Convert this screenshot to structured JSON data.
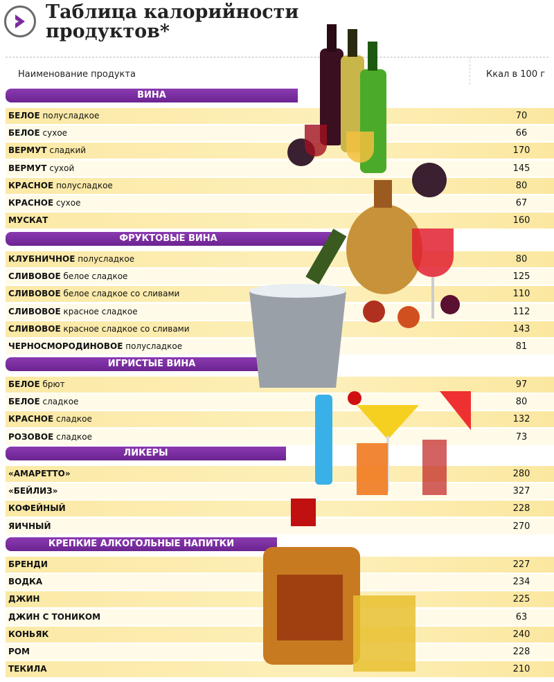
{
  "title_line1": "Таблица калорийности",
  "title_line2": "продуктов*",
  "columns": {
    "name": "Наименование продукта",
    "kcal": "Ккал в 100 г"
  },
  "sections": [
    {
      "title": "ВИНА",
      "items": [
        {
          "bold": "БЕЛОЕ",
          "rest": " полусладкое",
          "kcal": "70"
        },
        {
          "bold": "БЕЛОЕ",
          "rest": " сухое",
          "kcal": "66"
        },
        {
          "bold": "ВЕРМУТ",
          "rest": " сладкий",
          "kcal": "170"
        },
        {
          "bold": "ВЕРМУТ",
          "rest": " сухой",
          "kcal": "145"
        },
        {
          "bold": "КРАСНОЕ",
          "rest": " полусладкое",
          "kcal": "80"
        },
        {
          "bold": "КРАСНОЕ",
          "rest": " сухое",
          "kcal": "67"
        },
        {
          "bold": "МУСКАТ",
          "rest": "",
          "kcal": "160"
        }
      ]
    },
    {
      "title": "ФРУКТОВЫЕ ВИНА",
      "items": [
        {
          "bold": "КЛУБНИЧНОЕ",
          "rest": " полусладкое",
          "kcal": "80"
        },
        {
          "bold": "СЛИВОВОЕ",
          "rest": " белое сладкое",
          "kcal": "125"
        },
        {
          "bold": "СЛИВОВОЕ",
          "rest": " белое сладкое со сливами",
          "kcal": "110"
        },
        {
          "bold": "СЛИВОВОЕ",
          "rest": " красное сладкое",
          "kcal": "112"
        },
        {
          "bold": "СЛИВОВОЕ",
          "rest": " красное сладкое со сливами",
          "kcal": "143"
        },
        {
          "bold": "ЧЕРНОСМОРОДИНОВОЕ",
          "rest": " полусладкое",
          "kcal": "81"
        }
      ]
    },
    {
      "title": "ИГРИСТЫЕ ВИНА",
      "items": [
        {
          "bold": "БЕЛОЕ",
          "rest": " брют",
          "kcal": "97"
        },
        {
          "bold": "БЕЛОЕ",
          "rest": " сладкое",
          "kcal": "80"
        },
        {
          "bold": "КРАСНОЕ",
          "rest": " сладкое",
          "kcal": "132"
        },
        {
          "bold": "РОЗОВОЕ",
          "rest": " сладкое",
          "kcal": "73"
        }
      ]
    },
    {
      "title": "ЛИКЕРЫ",
      "items": [
        {
          "bold": "«АМАРЕТТО»",
          "rest": "",
          "kcal": "280"
        },
        {
          "bold": "«БЕЙЛИЗ»",
          "rest": "",
          "kcal": "327"
        },
        {
          "bold": "КОФЕЙНЫЙ",
          "rest": "",
          "kcal": "228"
        },
        {
          "bold": "ЯИЧНЫЙ",
          "rest": "",
          "kcal": "270"
        }
      ]
    },
    {
      "title": "КРЕПКИЕ АЛКОГОЛЬНЫЕ НАПИТКИ",
      "items": [
        {
          "bold": "БРЕНДИ",
          "rest": "",
          "kcal": "227"
        },
        {
          "bold": "ВОДКА",
          "rest": "",
          "kcal": "234"
        },
        {
          "bold": "ДЖИН",
          "rest": "",
          "kcal": "225"
        },
        {
          "bold": "ДЖИН С ТОНИКОМ",
          "rest": "",
          "kcal": "63"
        },
        {
          "bold": "КОНЬЯК",
          "rest": "",
          "kcal": "240"
        },
        {
          "bold": "РОМ",
          "rest": "",
          "kcal": "228"
        },
        {
          "bold": "ТЕКИЛА",
          "rest": "",
          "kcal": "210"
        }
      ]
    }
  ],
  "colors": {
    "accent": "#7b2d9e",
    "stripe": "#fbe9a6"
  }
}
